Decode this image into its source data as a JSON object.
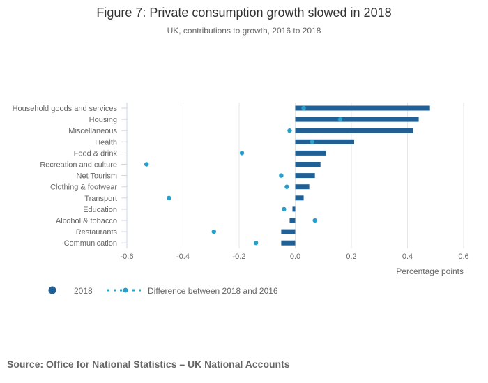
{
  "colors": {
    "bar": "#206095",
    "dot": "#27a0cc",
    "grid": "#e6e6e6",
    "axis": "#ccd6eb"
  },
  "chart_data": {
    "type": "bar",
    "orientation": "horizontal",
    "title": "Figure 7: Private consumption growth slowed in 2018",
    "subtitle": "UK, contributions to growth, 2016 to 2018",
    "xlabel": "Percentage points",
    "xlim": [
      -0.6,
      0.6
    ],
    "xticks": [
      "-0.6",
      "-0.4",
      "-0.2",
      "0.0",
      "0.2",
      "0.4",
      "0.6"
    ],
    "xtick_values": [
      -0.6,
      -0.4,
      -0.2,
      0,
      0.2,
      0.4,
      0.6
    ],
    "categories": [
      "Household goods and services",
      "Housing",
      "Miscellaneous",
      "Health",
      "Food & drink",
      "Recreation and culture",
      "Net Tourism",
      "Clothing & footwear",
      "Transport",
      "Education",
      "Alcohol & tobacco",
      "Restaurants",
      "Communication"
    ],
    "series": [
      {
        "name": "2018",
        "type": "bar",
        "values": [
          0.48,
          0.44,
          0.42,
          0.21,
          0.11,
          0.09,
          0.07,
          0.05,
          0.03,
          -0.01,
          -0.02,
          -0.05,
          -0.05
        ]
      },
      {
        "name": "Difference between 2018 and 2016",
        "type": "scatter",
        "values": [
          0.03,
          0.16,
          -0.02,
          0.06,
          -0.19,
          -0.53,
          -0.05,
          -0.03,
          -0.45,
          -0.04,
          0.07,
          -0.29,
          -0.14
        ]
      }
    ],
    "legend": "bottom-left",
    "grid": true
  },
  "source": "Source: Office for National Statistics – UK National Accounts"
}
